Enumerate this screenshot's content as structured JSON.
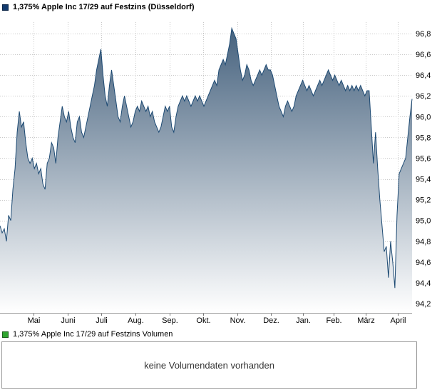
{
  "price_chart": {
    "legend_label": "1,375% Apple Inc 17/29 auf Festzins (Düsseldorf)",
    "legend_color": "#123a6d"
  },
  "volume_chart": {
    "legend_label": "1,375% Apple Inc 17/29 auf Festzins Volumen",
    "legend_color": "#2fa52f",
    "empty_message": "keine Volumendaten vorhanden"
  },
  "chart_data": {
    "type": "area",
    "title": "1,375% Apple Inc 17/29 auf Festzins (Düsseldorf)",
    "xlabel": "",
    "ylabel": "",
    "grid": true,
    "points_evenly_spaced": true,
    "colors": {
      "line": "#1d4a73",
      "fill_top": "#46627e",
      "fill_bottom": "#ffffff",
      "grid": "#c8c8c8"
    },
    "x_axis": {
      "labels": [
        "Mai",
        "Juni",
        "Juli",
        "Aug.",
        "Sep.",
        "Okt.",
        "Nov.",
        "Dez.",
        "Jan.",
        "Feb.",
        "März",
        "April"
      ],
      "fracs": [
        0.081,
        0.164,
        0.246,
        0.329,
        0.412,
        0.493,
        0.576,
        0.657,
        0.735,
        0.81,
        0.888,
        0.965
      ]
    },
    "y_axis": {
      "min": 94.2,
      "max": 96.8,
      "ticks": [
        96.8,
        96.6,
        96.4,
        96.2,
        96.0,
        95.8,
        95.6,
        95.4,
        95.2,
        95.0,
        94.8,
        94.6,
        94.4,
        94.2
      ],
      "labels": [
        "96,8",
        "96,6",
        "96,4",
        "96,2",
        "96,0",
        "95,8",
        "95,6",
        "95,4",
        "95,2",
        "95,0",
        "94,8",
        "94,6",
        "94,4",
        "94,2"
      ]
    },
    "values": [
      94.95,
      94.88,
      94.92,
      94.8,
      95.05,
      95.0,
      95.3,
      95.5,
      95.85,
      96.05,
      95.9,
      95.95,
      95.75,
      95.6,
      95.55,
      95.6,
      95.5,
      95.55,
      95.45,
      95.5,
      95.35,
      95.3,
      95.55,
      95.6,
      95.75,
      95.7,
      95.55,
      95.8,
      95.95,
      96.1,
      96.0,
      95.95,
      96.05,
      95.9,
      95.8,
      95.75,
      95.95,
      96.0,
      95.85,
      95.8,
      95.9,
      96.0,
      96.1,
      96.2,
      96.3,
      96.45,
      96.55,
      96.65,
      96.4,
      96.2,
      96.1,
      96.3,
      96.45,
      96.3,
      96.15,
      96.0,
      95.95,
      96.1,
      96.2,
      96.1,
      96.0,
      95.9,
      95.95,
      96.05,
      96.1,
      96.05,
      96.15,
      96.1,
      96.05,
      96.1,
      96.0,
      96.05,
      95.95,
      95.9,
      95.85,
      95.9,
      96.0,
      96.1,
      96.05,
      96.1,
      95.9,
      95.85,
      96.0,
      96.1,
      96.15,
      96.2,
      96.15,
      96.2,
      96.15,
      96.1,
      96.15,
      96.2,
      96.15,
      96.2,
      96.15,
      96.1,
      96.15,
      96.2,
      96.25,
      96.3,
      96.35,
      96.3,
      96.45,
      96.5,
      96.55,
      96.5,
      96.6,
      96.7,
      96.85,
      96.8,
      96.75,
      96.6,
      96.45,
      96.35,
      96.4,
      96.5,
      96.45,
      96.35,
      96.3,
      96.35,
      96.4,
      96.45,
      96.4,
      96.45,
      96.5,
      96.45,
      96.45,
      96.4,
      96.3,
      96.2,
      96.1,
      96.05,
      96.0,
      96.1,
      96.15,
      96.1,
      96.05,
      96.1,
      96.2,
      96.25,
      96.3,
      96.35,
      96.3,
      96.25,
      96.3,
      96.25,
      96.2,
      96.25,
      96.3,
      96.35,
      96.3,
      96.35,
      96.4,
      96.45,
      96.4,
      96.35,
      96.4,
      96.35,
      96.3,
      96.35,
      96.3,
      96.25,
      96.3,
      96.25,
      96.3,
      96.25,
      96.3,
      96.25,
      96.3,
      96.25,
      96.2,
      96.25,
      96.25,
      95.9,
      95.55,
      95.85,
      95.5,
      95.2,
      94.95,
      94.7,
      94.75,
      94.45,
      94.8,
      94.6,
      94.35,
      95.05,
      95.45,
      95.5,
      95.55,
      95.6,
      95.8,
      96.0,
      96.17
    ]
  }
}
